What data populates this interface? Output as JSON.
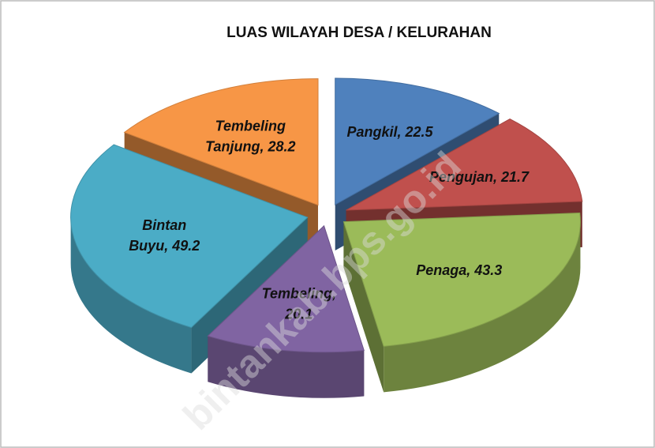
{
  "chart_data": {
    "type": "pie3d",
    "title": "LUAS WILAYAH DESA / KELURAHAN",
    "values": [
      22.5,
      21.7,
      43.3,
      20.1,
      49.2,
      28.2
    ],
    "value_labels": [
      [
        "Pangkil, 22.5"
      ],
      [
        "Pengujan, 21.7"
      ],
      [
        "Penaga, 43.3"
      ],
      [
        "Tembeling,",
        "20.1"
      ],
      [
        "Bintan",
        "Buyu, 49.2"
      ],
      [
        "Tembeling",
        "Tanjung, 28.2"
      ]
    ],
    "colors": [
      "#4f81bd",
      "#c0504d",
      "#9bbb59",
      "#8064a2",
      "#4bacc6",
      "#f79646"
    ],
    "watermark": "bintankab.bps.go.id"
  }
}
